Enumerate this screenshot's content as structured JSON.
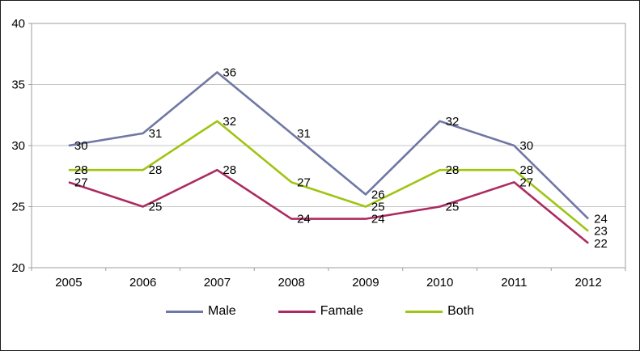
{
  "chart_data": {
    "type": "line",
    "title": "",
    "xlabel": "",
    "ylabel": "",
    "categories": [
      "2005",
      "2006",
      "2007",
      "2008",
      "2009",
      "2010",
      "2011",
      "2012"
    ],
    "series": [
      {
        "name": "Male",
        "color": "#6f77a4",
        "values": [
          30,
          31,
          36,
          31,
          26,
          32,
          30,
          24
        ]
      },
      {
        "name": "Famale",
        "color": "#ac2a60",
        "values": [
          27,
          25,
          28,
          24,
          24,
          25,
          27,
          22
        ]
      },
      {
        "name": "Both",
        "color": "#9fc412",
        "values": [
          28,
          28,
          32,
          27,
          25,
          28,
          28,
          23
        ]
      }
    ],
    "ylim": [
      20,
      40
    ],
    "yticks": [
      20,
      25,
      30,
      35,
      40
    ],
    "grid": true,
    "data_labels": true,
    "legend_position": "bottom",
    "colors": {
      "gridline": "#c6c6c6",
      "axis": "#9e9e9e",
      "text": "#000000"
    }
  }
}
